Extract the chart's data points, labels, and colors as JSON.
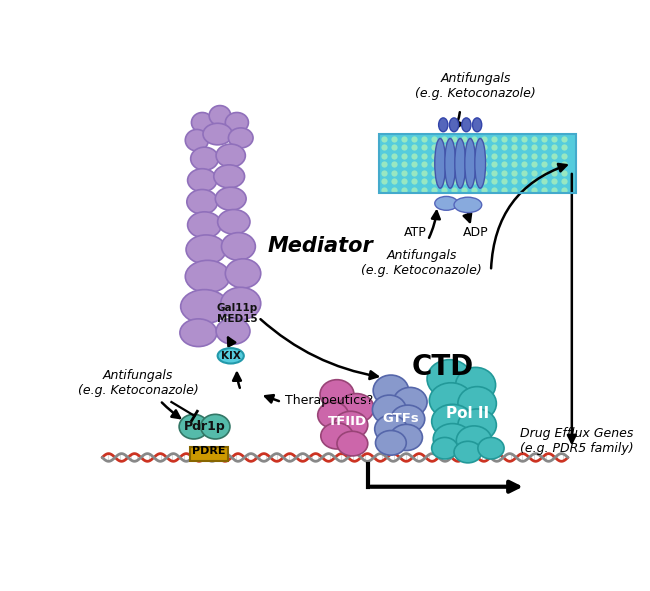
{
  "background_color": "#ffffff",
  "mediator_color": "#b090cc",
  "mediator_outline": "#9070bb",
  "mediator_label": "Mediator",
  "mediator_label_fontsize": 15,
  "gal11p_color": "#9878bb",
  "kix_color": "#55ccdd",
  "kix_label": "KIX",
  "gal11p_label": "Gal11p\nMED15",
  "pdr1p_color": "#55bbaa",
  "pdr1p_label": "Pdr1p",
  "pdre_color": "#cc9900",
  "pdre_label": "PDRE",
  "tfiid_color": "#cc66aa",
  "tfiid_label": "TFIID",
  "gtfs_color": "#8899cc",
  "gtfs_label": "GTFs",
  "polii_color": "#44bbbb",
  "polii_label": "Pol II",
  "ctd_label": "CTD",
  "ctd_fontsize": 20,
  "membrane_top_color": "#44ccdd",
  "membrane_dot_color": "#99eebb",
  "transporter_color": "#6677cc",
  "antifungals_top_label": "Antifungals\n(e.g. Ketoconazole)",
  "antifungals_mid_label": "Antifungals\n(e.g. Ketoconazole)",
  "antifungals_left_label": "Antifungals\n(e.g. Ketoconazole)",
  "therapeutics_label": "Therapeutics?",
  "drug_efflux_label": "Drug Efflux Genes\n(e.g. PDR5 family)",
  "atp_label": "ATP",
  "adp_label": "ADP",
  "dna_color1": "#cc3322",
  "dna_color2": "#888888"
}
